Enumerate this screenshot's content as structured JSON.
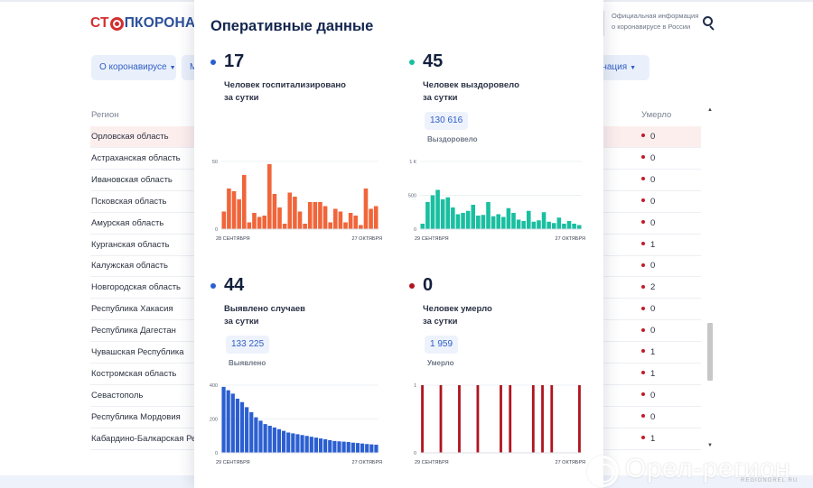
{
  "header": {
    "logo_red": "СТ",
    "logo_blue": "ПКОРОНАВИ",
    "official_line1": "Официальная информация",
    "official_line2": "о коронавирусе в России"
  },
  "nav": {
    "about": "О коронавирусе",
    "m_partial": "М",
    "vaccination": "цинация"
  },
  "table": {
    "col_region": "Регион",
    "col_died": "Умерло",
    "rows": [
      {
        "region": "Орловская область",
        "died": "0"
      },
      {
        "region": "Астраханская область",
        "died": "0"
      },
      {
        "region": "Ивановская область",
        "died": "0"
      },
      {
        "region": "Псковская область",
        "died": "0"
      },
      {
        "region": "Амурская область",
        "died": "0"
      },
      {
        "region": "Курганская область",
        "died": "1"
      },
      {
        "region": "Калужская область",
        "died": "0"
      },
      {
        "region": "Новгородская область",
        "died": "2"
      },
      {
        "region": "Республика Хакасия",
        "died": "0"
      },
      {
        "region": "Республика Дагестан",
        "died": "0"
      },
      {
        "region": "Чувашская Республика",
        "died": "1"
      },
      {
        "region": "Костромская область",
        "died": "1"
      },
      {
        "region": "Севастополь",
        "died": "0"
      },
      {
        "region": "Республика Мордовия",
        "died": "0"
      },
      {
        "region": "Кабардино-Балкарская Ре",
        "died": "1"
      }
    ]
  },
  "modal": {
    "title": "Оперативные данные",
    "stats": [
      {
        "number": "17",
        "label1": "Человек госпитализировано",
        "label2": "за сутки",
        "total": "",
        "total_caption": "",
        "color": "#2b5fd1"
      },
      {
        "number": "45",
        "label1": "Человек выздоровело",
        "label2": "за сутки",
        "total": "130 616",
        "total_caption": "Выздоровело",
        "color": "#19bfa0"
      },
      {
        "number": "44",
        "label1": "Выявлено случаев",
        "label2": "за сутки",
        "total": "133 225",
        "total_caption": "Выявлено",
        "color": "#2b5fd1"
      },
      {
        "number": "0",
        "label1": "Человек умерло",
        "label2": "за сутки",
        "total": "1 959",
        "total_caption": "Умерло",
        "color": "#b0141e"
      }
    ]
  },
  "chart_data": [
    {
      "type": "bar",
      "color": "#f06539",
      "x_start": "28 СЕНТЯБРЯ",
      "x_end": "27 ОКТЯБРЯ",
      "y_ticks": [
        "50",
        "0"
      ],
      "ylim": [
        0,
        50
      ],
      "values": [
        13,
        30,
        28,
        22,
        40,
        5,
        12,
        9,
        10,
        48,
        26,
        16,
        4,
        27,
        24,
        13,
        4,
        20,
        20,
        20,
        17,
        5,
        15,
        13,
        5,
        12,
        10,
        3,
        30,
        15,
        17
      ]
    },
    {
      "type": "bar",
      "color": "#19bfa0",
      "x_start": "29 СЕНТЯБРЯ",
      "x_end": "27 ОКТЯБРЯ",
      "y_ticks": [
        "1 К",
        "500",
        "0"
      ],
      "ylim": [
        0,
        1000
      ],
      "values": [
        80,
        400,
        500,
        580,
        440,
        470,
        320,
        220,
        240,
        270,
        360,
        200,
        210,
        400,
        190,
        220,
        180,
        310,
        240,
        140,
        120,
        270,
        110,
        130,
        250,
        110,
        90,
        170,
        80,
        120,
        80,
        60
      ]
    },
    {
      "type": "bar",
      "color": "#2b5fd1",
      "x_start": "29 СЕНТЯБРЯ",
      "x_end": "27 ОКТЯБРЯ",
      "y_ticks": [
        "400",
        "200",
        "0"
      ],
      "ylim": [
        0,
        400
      ],
      "values": [
        390,
        370,
        350,
        320,
        300,
        270,
        240,
        210,
        190,
        170,
        160,
        150,
        140,
        130,
        120,
        115,
        110,
        105,
        100,
        95,
        90,
        85,
        80,
        75,
        70,
        68,
        66,
        64,
        60,
        58,
        55,
        52,
        50,
        48
      ]
    },
    {
      "type": "bar",
      "color": "#b0141e",
      "x_start": "29 СЕНТЯБРЯ",
      "x_end": "27 ОКТЯБРЯ",
      "y_ticks": [
        "1",
        "0"
      ],
      "ylim": [
        0,
        1
      ],
      "values": [
        1,
        0,
        0,
        0,
        1,
        0,
        0,
        0,
        1,
        0,
        0,
        0,
        1,
        0,
        0,
        0,
        0,
        1,
        0,
        1,
        0,
        0,
        0,
        0,
        1,
        0,
        1,
        0,
        1,
        0,
        0,
        0,
        0,
        0,
        1
      ]
    }
  ],
  "watermark": {
    "name": "Орел-регион",
    "site": "REGIONOREL.RU"
  }
}
